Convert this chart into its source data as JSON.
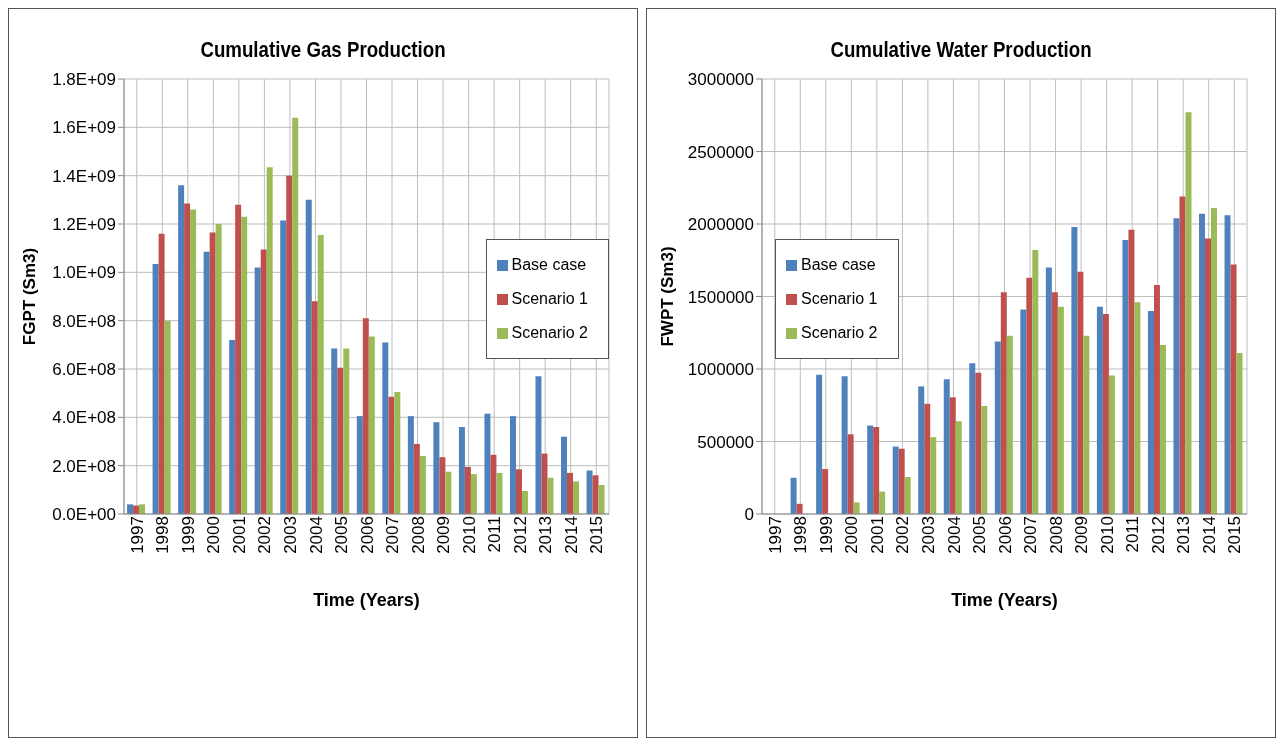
{
  "chart_data": [
    {
      "type": "bar",
      "title": "Cumulative Gas Production",
      "xlabel": "Time (Years)",
      "ylabel": "FGPT (Sm3)",
      "categories": [
        "1997",
        "1998",
        "1999",
        "2000",
        "2001",
        "2002",
        "2003",
        "2004",
        "2005",
        "2006",
        "2007",
        "2008",
        "2009",
        "2010",
        "2011",
        "2012",
        "2013",
        "2014",
        "2015"
      ],
      "series": [
        {
          "name": "Base case",
          "color": "#4f81bd",
          "values": [
            40000000,
            1035000000,
            1360000000,
            1085000000,
            720000000,
            1020000000,
            1215000000,
            1300000000,
            685000000,
            405000000,
            710000000,
            405000000,
            380000000,
            360000000,
            415000000,
            405000000,
            570000000,
            320000000,
            180000000
          ]
        },
        {
          "name": "Scenario 1",
          "color": "#c0504d",
          "values": [
            35000000,
            1160000000,
            1285000000,
            1165000000,
            1280000000,
            1095000000,
            1400000000,
            880000000,
            605000000,
            810000000,
            485000000,
            290000000,
            235000000,
            195000000,
            245000000,
            185000000,
            250000000,
            170000000,
            160000000
          ]
        },
        {
          "name": "Scenario 2",
          "color": "#9bbb59",
          "values": [
            40000000,
            800000000,
            1260000000,
            1200000000,
            1230000000,
            1435000000,
            1640000000,
            1155000000,
            685000000,
            735000000,
            505000000,
            240000000,
            175000000,
            165000000,
            170000000,
            95000000,
            150000000,
            135000000,
            120000000
          ]
        }
      ],
      "ylim": [
        0,
        1800000000
      ],
      "yticks": [
        {
          "value": 0,
          "label": "0.0E+00"
        },
        {
          "value": 200000000,
          "label": "2.0E+08"
        },
        {
          "value": 400000000,
          "label": "4.0E+08"
        },
        {
          "value": 600000000,
          "label": "6.0E+08"
        },
        {
          "value": 800000000,
          "label": "8.0E+08"
        },
        {
          "value": 1000000000,
          "label": "1.0E+09"
        },
        {
          "value": 1200000000,
          "label": "1.2E+09"
        },
        {
          "value": 1400000000,
          "label": "1.4E+09"
        },
        {
          "value": 1600000000,
          "label": "1.6E+09"
        },
        {
          "value": 1800000000,
          "label": "1.8E+09"
        }
      ],
      "grid": true,
      "legend": "right"
    },
    {
      "type": "bar",
      "title": "Cumulative Water Production",
      "xlabel": "Time (Years)",
      "ylabel": "FWPT (Sm3)",
      "categories": [
        "1997",
        "1998",
        "1999",
        "2000",
        "2001",
        "2002",
        "2003",
        "2004",
        "2005",
        "2006",
        "2007",
        "2008",
        "2009",
        "2010",
        "2011",
        "2012",
        "2013",
        "2014",
        "2015"
      ],
      "series": [
        {
          "name": "Base case",
          "color": "#4f81bd",
          "values": [
            0,
            250000,
            960000,
            950000,
            610000,
            465000,
            880000,
            930000,
            1040000,
            1190000,
            1410000,
            1700000,
            1980000,
            1430000,
            1890000,
            1400000,
            2040000,
            2070000,
            2060000
          ]
        },
        {
          "name": "Scenario 1",
          "color": "#c0504d",
          "values": [
            0,
            70000,
            310000,
            550000,
            600000,
            450000,
            760000,
            805000,
            975000,
            1530000,
            1630000,
            1530000,
            1670000,
            1380000,
            1960000,
            1580000,
            2190000,
            1900000,
            1720000
          ]
        },
        {
          "name": "Scenario 2",
          "color": "#9bbb59",
          "values": [
            0,
            0,
            0,
            80000,
            155000,
            255000,
            530000,
            640000,
            745000,
            1230000,
            1820000,
            1430000,
            1230000,
            955000,
            1460000,
            1165000,
            2770000,
            2110000,
            1110000
          ]
        }
      ],
      "ylim": [
        0,
        3000000
      ],
      "yticks": [
        0,
        500000,
        1000000,
        1500000,
        2000000,
        2500000,
        3000000
      ],
      "grid": true,
      "legend": "left"
    }
  ]
}
